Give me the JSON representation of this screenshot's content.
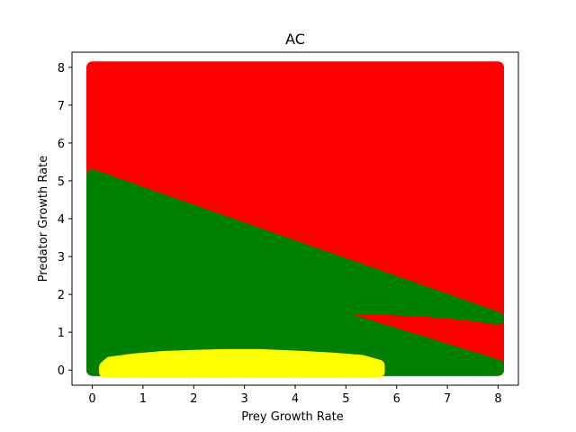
{
  "chart_data": {
    "type": "scatter",
    "title": "AC",
    "xlabel": "Prey Growth Rate",
    "ylabel": "Predator Growth Rate",
    "xlim": [
      -0.4,
      8.4
    ],
    "ylim": [
      -0.4,
      8.4
    ],
    "xticks": [
      0,
      1,
      2,
      3,
      4,
      5,
      6,
      7,
      8
    ],
    "yticks": [
      0,
      1,
      2,
      3,
      4,
      5,
      6,
      7,
      8
    ],
    "grid": false,
    "colors": {
      "red": "#ff0000",
      "green": "#008000",
      "yellow": "#ffff00"
    },
    "regions": [
      {
        "color": "red",
        "boundary": [
          [
            0,
            0
          ],
          [
            8,
            0
          ],
          [
            8,
            8
          ],
          [
            0,
            8
          ]
        ]
      },
      {
        "color": "green",
        "boundary": [
          [
            0,
            5.15
          ],
          [
            0,
            0
          ],
          [
            8,
            0
          ],
          [
            8,
            0.12
          ],
          [
            4.3,
            1.65
          ],
          [
            5.5,
            1.63
          ],
          [
            6.5,
            1.57
          ],
          [
            7.4,
            1.47
          ],
          [
            8,
            1.35
          ],
          [
            8,
            1.38
          ]
        ]
      },
      {
        "color": "yellow",
        "boundary": [
          [
            0.25,
            0.08
          ],
          [
            0.35,
            0.2
          ],
          [
            0.8,
            0.28
          ],
          [
            1.4,
            0.35
          ],
          [
            2.0,
            0.38
          ],
          [
            2.6,
            0.4
          ],
          [
            3.3,
            0.4
          ],
          [
            4.0,
            0.36
          ],
          [
            4.7,
            0.31
          ],
          [
            5.3,
            0.25
          ],
          [
            5.65,
            0.12
          ],
          [
            5.65,
            -0.05
          ],
          [
            0.25,
            -0.05
          ]
        ]
      }
    ]
  }
}
